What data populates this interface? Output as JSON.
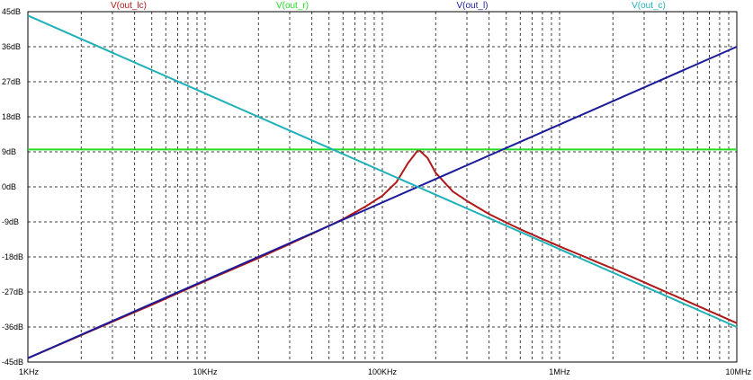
{
  "chart_data": {
    "type": "line",
    "title": "",
    "xlabel": "",
    "ylabel": "",
    "x_scale": "log",
    "xlim": [
      1000,
      10000000
    ],
    "ylim": [
      -45,
      45
    ],
    "grid": true,
    "legend_placement": "top",
    "x_ticks": [
      {
        "value": 1000,
        "label": "1KHz"
      },
      {
        "value": 10000,
        "label": "10KHz"
      },
      {
        "value": 100000,
        "label": "100KHz"
      },
      {
        "value": 1000000,
        "label": "1MHz"
      },
      {
        "value": 10000000,
        "label": "10MHz"
      }
    ],
    "y_ticks": [
      {
        "value": 45,
        "label": "45dB"
      },
      {
        "value": 36,
        "label": "36dB"
      },
      {
        "value": 27,
        "label": "27dB"
      },
      {
        "value": 18,
        "label": "18dB"
      },
      {
        "value": 9,
        "label": "9dB"
      },
      {
        "value": 0,
        "label": "0dB"
      },
      {
        "value": -9,
        "label": "-9dB"
      },
      {
        "value": -18,
        "label": "-18dB"
      },
      {
        "value": -27,
        "label": "-27dB"
      },
      {
        "value": -36,
        "label": "-36dB"
      },
      {
        "value": -45,
        "label": "-45dB"
      }
    ],
    "series": [
      {
        "name": "V(out_lc)",
        "color": "#b01818",
        "x": [
          1000,
          5000,
          10000,
          20000,
          40000,
          60000,
          80000,
          100000,
          120000,
          140000,
          160000,
          180000,
          200000,
          250000,
          300000,
          400000,
          600000,
          1000000,
          2000000,
          10000000
        ],
        "y": [
          -44,
          -30.3,
          -24.2,
          -18.3,
          -12.1,
          -8.3,
          -5.1,
          -2.3,
          1.2,
          6.2,
          9.6,
          7.4,
          3.6,
          -1.2,
          -3.6,
          -7,
          -10.9,
          -15.3,
          -21,
          -35
        ]
      },
      {
        "name": "V(out_r)",
        "color": "#22dd22",
        "x": [
          1000,
          10000000
        ],
        "y": [
          9.6,
          9.6
        ]
      },
      {
        "name": "V(out_l)",
        "color": "#1a1a9a",
        "x": [
          1000,
          10000000
        ],
        "y": [
          -44,
          36
        ]
      },
      {
        "name": "V(out_c)",
        "color": "#20b0b8",
        "x": [
          1000,
          10000000
        ],
        "y": [
          44,
          -36
        ]
      }
    ]
  }
}
